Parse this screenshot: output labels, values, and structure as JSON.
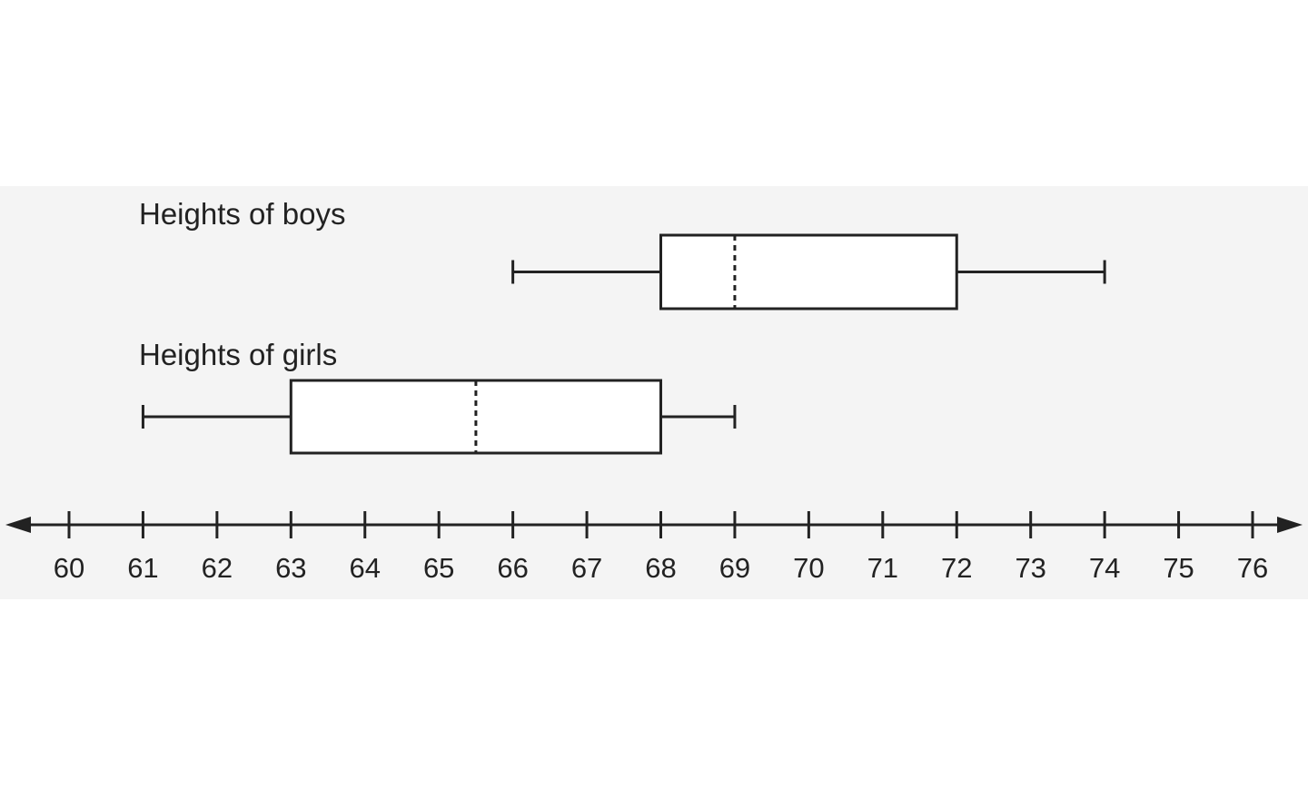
{
  "chart_data": {
    "type": "boxplot",
    "series": [
      {
        "name": "Heights of boys",
        "min": 66,
        "q1": 68,
        "median": 69,
        "q3": 72,
        "max": 74
      },
      {
        "name": "Heights of girls",
        "min": 61,
        "q1": 63,
        "median": 65.5,
        "q3": 68,
        "max": 69
      }
    ],
    "x_ticks": [
      60,
      61,
      62,
      63,
      64,
      65,
      66,
      67,
      68,
      69,
      70,
      71,
      72,
      73,
      74,
      75,
      76
    ],
    "xlim": [
      60,
      76
    ],
    "median_style": "dashed",
    "axis_arrows": "both ends",
    "grid": false
  }
}
